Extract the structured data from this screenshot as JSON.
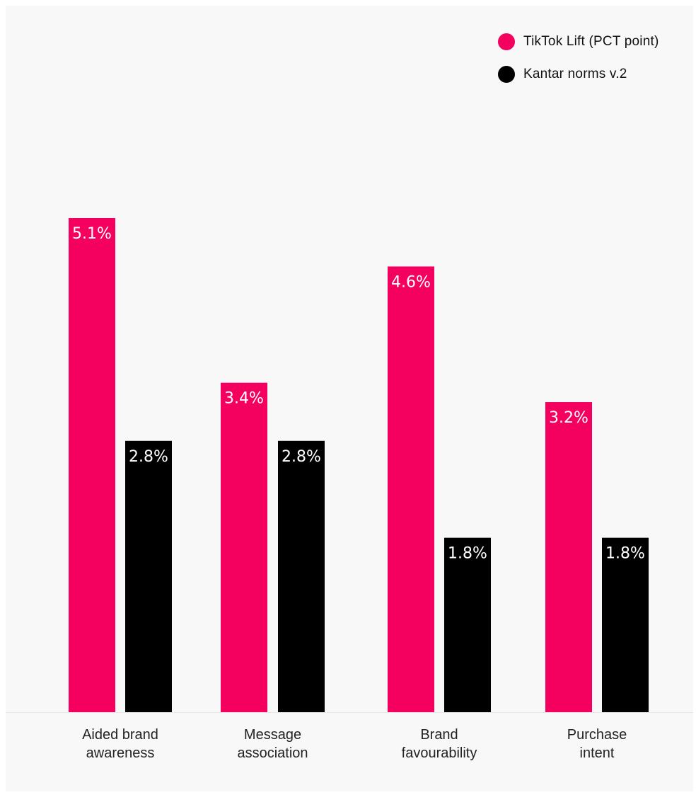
{
  "chart_data": {
    "type": "bar",
    "categories": [
      [
        "Aided brand",
        "awareness"
      ],
      [
        "Message",
        "association"
      ],
      [
        "Brand",
        "favourability"
      ],
      [
        "Purchase",
        "intent"
      ]
    ],
    "series": [
      {
        "name": "TikTok Lift (PCT point)",
        "color": "#f4005e",
        "values": [
          5.1,
          3.4,
          4.6,
          3.2
        ],
        "labels": [
          "5.1%",
          "3.4%",
          "4.6%",
          "3.2%"
        ]
      },
      {
        "name": "Kantar norms v.2",
        "color": "#000000",
        "values": [
          2.8,
          2.8,
          1.8,
          1.8
        ],
        "labels": [
          "2.8%",
          "2.8%",
          "1.8%",
          "1.8%"
        ]
      }
    ],
    "ylim": [
      0,
      5.1
    ],
    "grid": false,
    "legend_position": "top-right"
  },
  "legend": {
    "items": [
      {
        "label": "TikTok Lift (PCT point)",
        "color": "#f4005e"
      },
      {
        "label": "Kantar norms v.2",
        "color": "#000000"
      }
    ]
  }
}
